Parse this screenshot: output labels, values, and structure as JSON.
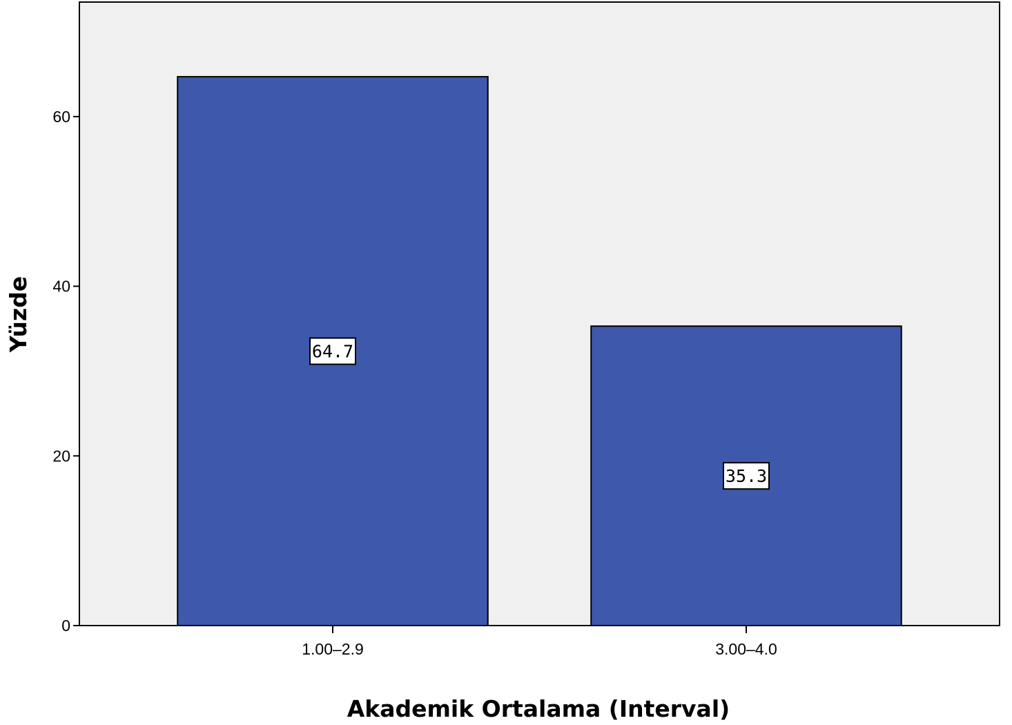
{
  "chart_data": {
    "type": "bar",
    "categories": [
      "1.00–2.9",
      "3.00–4.0"
    ],
    "values": [
      64.7,
      35.3
    ],
    "data_labels": [
      "64.7",
      "35.3"
    ],
    "title": "",
    "xlabel": "Akademik Ortalama (Interval)",
    "ylabel": "Yüzde",
    "ylim": [
      0,
      73.5
    ],
    "yticks": [
      0,
      20,
      40,
      60
    ],
    "ytick_labels": [
      "0",
      "20",
      "40",
      "60"
    ],
    "grid": false,
    "legend": "none",
    "colors": {
      "bar": "#3e58ab",
      "plot_background": "#f0f0f0",
      "page_background": "#ffffff",
      "axis": "#000000",
      "label_box": "#ffffff"
    }
  }
}
